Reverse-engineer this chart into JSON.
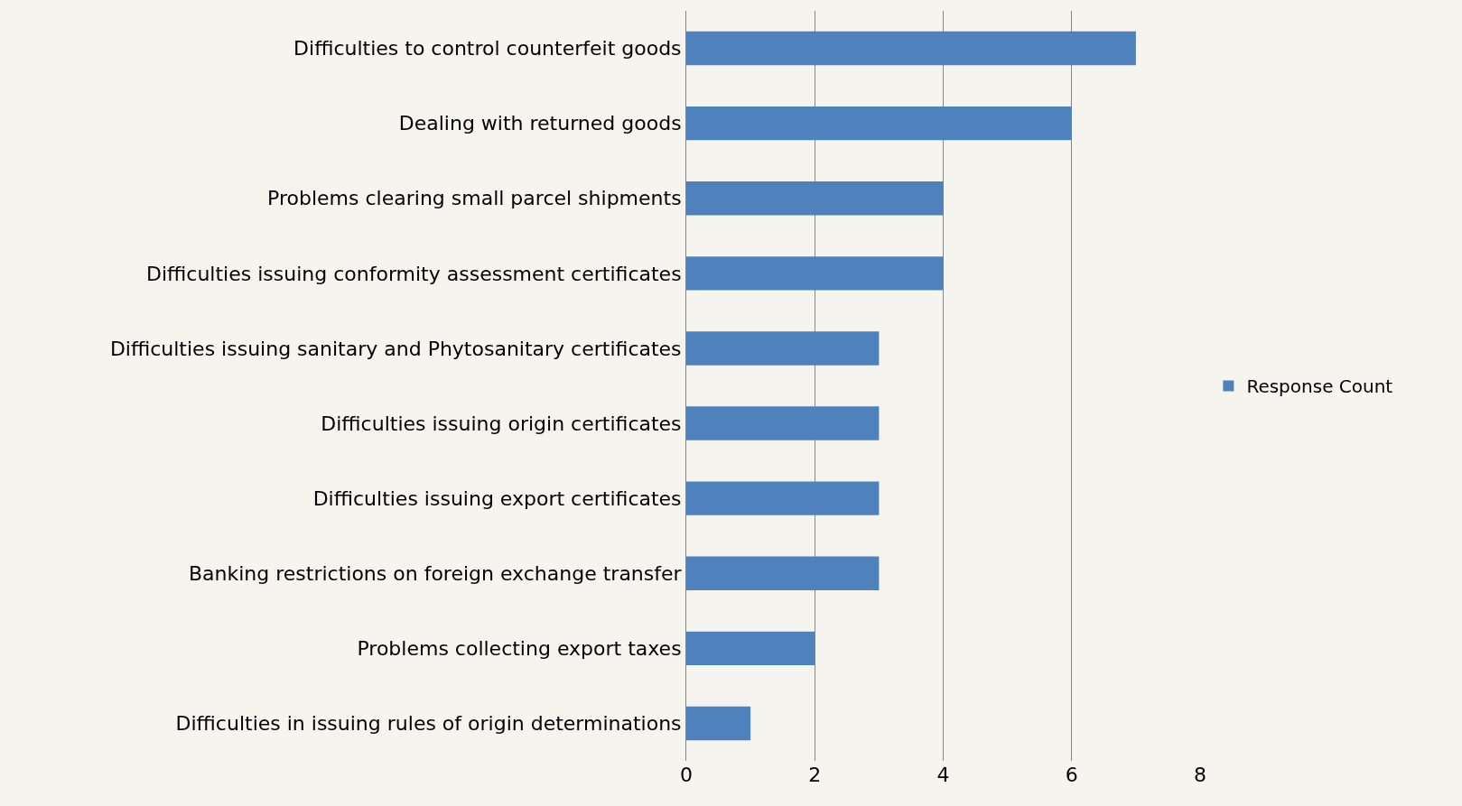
{
  "chart_data": {
    "type": "bar",
    "orientation": "horizontal",
    "categories": [
      "Difficulties to control counterfeit goods",
      "Dealing with returned goods",
      "Problems clearing small parcel shipments",
      "Difficulties issuing conformity assessment certificates",
      "Difficulties issuing sanitary and Phytosanitary certificates",
      "Difficulties issuing origin certificates",
      "Difficulties issuing export certificates",
      "Banking restrictions on foreign exchange transfer",
      "Problems collecting export taxes",
      "Difficulties in issuing rules of origin determinations"
    ],
    "series": [
      {
        "name": "Response Count",
        "color": "#4f81bd",
        "values": [
          7,
          6,
          4,
          4,
          3,
          3,
          3,
          3,
          2,
          1
        ]
      }
    ],
    "xlim": [
      0,
      8
    ],
    "xticks": [
      0,
      2,
      4,
      6,
      8
    ],
    "grid": "x",
    "legend": "right"
  }
}
